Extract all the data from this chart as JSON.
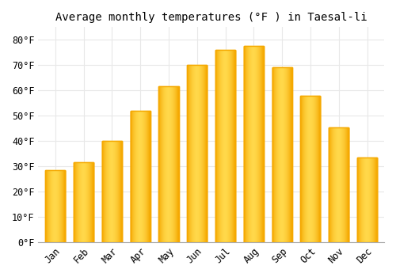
{
  "title": "Average monthly temperatures (°F ) in Taesal-li",
  "months": [
    "Jan",
    "Feb",
    "Mar",
    "Apr",
    "May",
    "Jun",
    "Jul",
    "Aug",
    "Sep",
    "Oct",
    "Nov",
    "Dec"
  ],
  "values": [
    28.5,
    31.5,
    40.0,
    52.0,
    61.5,
    70.0,
    76.0,
    77.5,
    69.0,
    58.0,
    45.5,
    33.5
  ],
  "bar_color_center": "#FFD84A",
  "bar_color_edge": "#F5A800",
  "ylim": [
    0,
    85
  ],
  "yticks": [
    0,
    10,
    20,
    30,
    40,
    50,
    60,
    70,
    80
  ],
  "ytick_labels": [
    "0°F",
    "10°F",
    "20°F",
    "30°F",
    "40°F",
    "50°F",
    "60°F",
    "70°F",
    "80°F"
  ],
  "background_color": "#FFFFFF",
  "grid_color": "#E8E8E8",
  "title_fontsize": 10,
  "tick_fontsize": 8.5,
  "bar_width": 0.7
}
